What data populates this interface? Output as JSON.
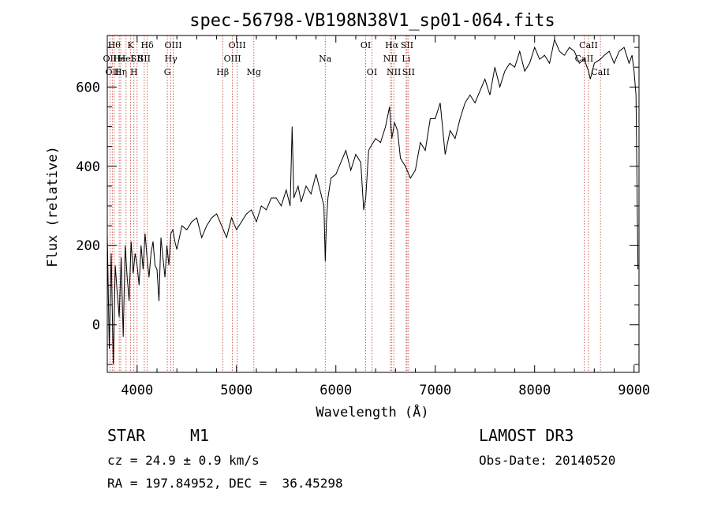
{
  "chart_data": {
    "type": "line",
    "title": "spec-56798-VB198N38V1_sp01-064.fits",
    "xlabel": "Wavelength (Å)",
    "ylabel": "Flux (relative)",
    "xlim": [
      3700,
      9050
    ],
    "ylim": [
      -120,
      730
    ],
    "x_ticks": [
      4000,
      5000,
      6000,
      7000,
      8000,
      9000
    ],
    "y_ticks": [
      0,
      200,
      400,
      600
    ],
    "series": [
      {
        "name": "spectrum",
        "x": [
          3700,
          3720,
          3740,
          3760,
          3780,
          3800,
          3820,
          3840,
          3860,
          3880,
          3900,
          3920,
          3940,
          3960,
          3980,
          4000,
          4020,
          4040,
          4060,
          4080,
          4100,
          4120,
          4140,
          4160,
          4180,
          4200,
          4220,
          4240,
          4260,
          4280,
          4300,
          4320,
          4340,
          4360,
          4380,
          4400,
          4450,
          4500,
          4550,
          4600,
          4650,
          4700,
          4750,
          4800,
          4850,
          4900,
          4950,
          5000,
          5050,
          5100,
          5150,
          5200,
          5250,
          5300,
          5350,
          5400,
          5450,
          5500,
          5540,
          5560,
          5577,
          5590,
          5620,
          5650,
          5700,
          5750,
          5800,
          5850,
          5880,
          5893,
          5905,
          5920,
          5950,
          6000,
          6050,
          6100,
          6150,
          6200,
          6250,
          6280,
          6300,
          6330,
          6350,
          6400,
          6450,
          6500,
          6540,
          6563,
          6590,
          6620,
          6650,
          6700,
          6750,
          6800,
          6850,
          6900,
          6950,
          7000,
          7050,
          7100,
          7150,
          7200,
          7250,
          7300,
          7350,
          7400,
          7450,
          7500,
          7550,
          7600,
          7650,
          7700,
          7750,
          7800,
          7850,
          7900,
          7950,
          8000,
          8050,
          8100,
          8150,
          8200,
          8250,
          8300,
          8350,
          8400,
          8450,
          8498,
          8542,
          8560,
          8600,
          8662,
          8700,
          8750,
          8800,
          8850,
          8900,
          8950,
          8980,
          9000,
          9020,
          9040
        ],
        "y": [
          230,
          -60,
          180,
          -100,
          150,
          80,
          20,
          170,
          -30,
          200,
          120,
          60,
          210,
          130,
          180,
          150,
          100,
          200,
          140,
          230,
          170,
          120,
          180,
          210,
          150,
          140,
          60,
          220,
          170,
          120,
          200,
          150,
          230,
          240,
          210,
          190,
          250,
          240,
          260,
          270,
          220,
          250,
          270,
          280,
          250,
          220,
          270,
          240,
          260,
          280,
          290,
          260,
          300,
          290,
          320,
          320,
          300,
          340,
          300,
          500,
          320,
          330,
          350,
          310,
          350,
          330,
          380,
          330,
          300,
          160,
          260,
          320,
          370,
          380,
          410,
          440,
          390,
          430,
          410,
          290,
          320,
          440,
          450,
          470,
          460,
          500,
          550,
          470,
          510,
          490,
          420,
          400,
          370,
          390,
          460,
          440,
          520,
          520,
          560,
          430,
          490,
          470,
          520,
          560,
          580,
          560,
          590,
          620,
          580,
          650,
          600,
          640,
          660,
          650,
          690,
          640,
          660,
          700,
          670,
          680,
          660,
          720,
          690,
          680,
          700,
          690,
          660,
          670,
          640,
          620,
          660,
          670,
          680,
          690,
          660,
          690,
          700,
          660,
          680,
          640,
          580,
          140
        ]
      }
    ],
    "line_markers": [
      {
        "x": 3727,
        "label": "OII",
        "row": 1
      },
      {
        "x": 3750,
        "label": "OII",
        "row": 2
      },
      {
        "x": 3770,
        "label": "Hθ",
        "row": 0
      },
      {
        "x": 3820,
        "label": "He",
        "row": 1
      },
      {
        "x": 3835,
        "label": "Hη",
        "row": 2
      },
      {
        "x": 3889,
        "label": "HeI",
        "row": 1
      },
      {
        "x": 3934,
        "label": "K",
        "row": 0
      },
      {
        "x": 3968,
        "label": "H",
        "row": 2
      },
      {
        "x": 4000,
        "label": "SII",
        "row": 1
      },
      {
        "x": 4072,
        "label": "SII",
        "row": 1
      },
      {
        "x": 4102,
        "label": "Hδ",
        "row": 0
      },
      {
        "x": 4304,
        "label": "G",
        "row": 2
      },
      {
        "x": 4340,
        "label": "Hγ",
        "row": 1
      },
      {
        "x": 4363,
        "label": "OIII",
        "row": 0
      },
      {
        "x": 4861,
        "label": "Hβ",
        "row": 2
      },
      {
        "x": 4959,
        "label": "OIII",
        "row": 1
      },
      {
        "x": 5007,
        "label": "OIII",
        "row": 0
      },
      {
        "x": 5175,
        "label": "Mg",
        "row": 2
      },
      {
        "x": 5893,
        "label": "Na",
        "row": 1
      },
      {
        "x": 6300,
        "label": "OI",
        "row": 0
      },
      {
        "x": 6363,
        "label": "OI",
        "row": 2
      },
      {
        "x": 6548,
        "label": "NII",
        "row": 1
      },
      {
        "x": 6563,
        "label": "Hα",
        "row": 0
      },
      {
        "x": 6583,
        "label": "NII",
        "row": 2
      },
      {
        "x": 6707,
        "label": "Li",
        "row": 1
      },
      {
        "x": 6716,
        "label": "SII",
        "row": 0
      },
      {
        "x": 6731,
        "label": "SII",
        "row": 2
      },
      {
        "x": 8498,
        "label": "CaII",
        "row": 1
      },
      {
        "x": 8542,
        "label": "CaII",
        "row": 0
      },
      {
        "x": 8662,
        "label": "CaII",
        "row": 2
      }
    ]
  },
  "info": {
    "object_type": "STAR",
    "subclass": "M1",
    "survey": "LAMOST DR3",
    "cz": "cz = 24.9 ± 0.9 km/s",
    "obs_date": "Obs-Date: 20140520",
    "coords": "RA = 197.84952, DEC =  36.45298"
  },
  "colors": {
    "spectrum": "#000000",
    "marker_line": "#c0392b",
    "axis": "#000000",
    "background": "#ffffff"
  }
}
